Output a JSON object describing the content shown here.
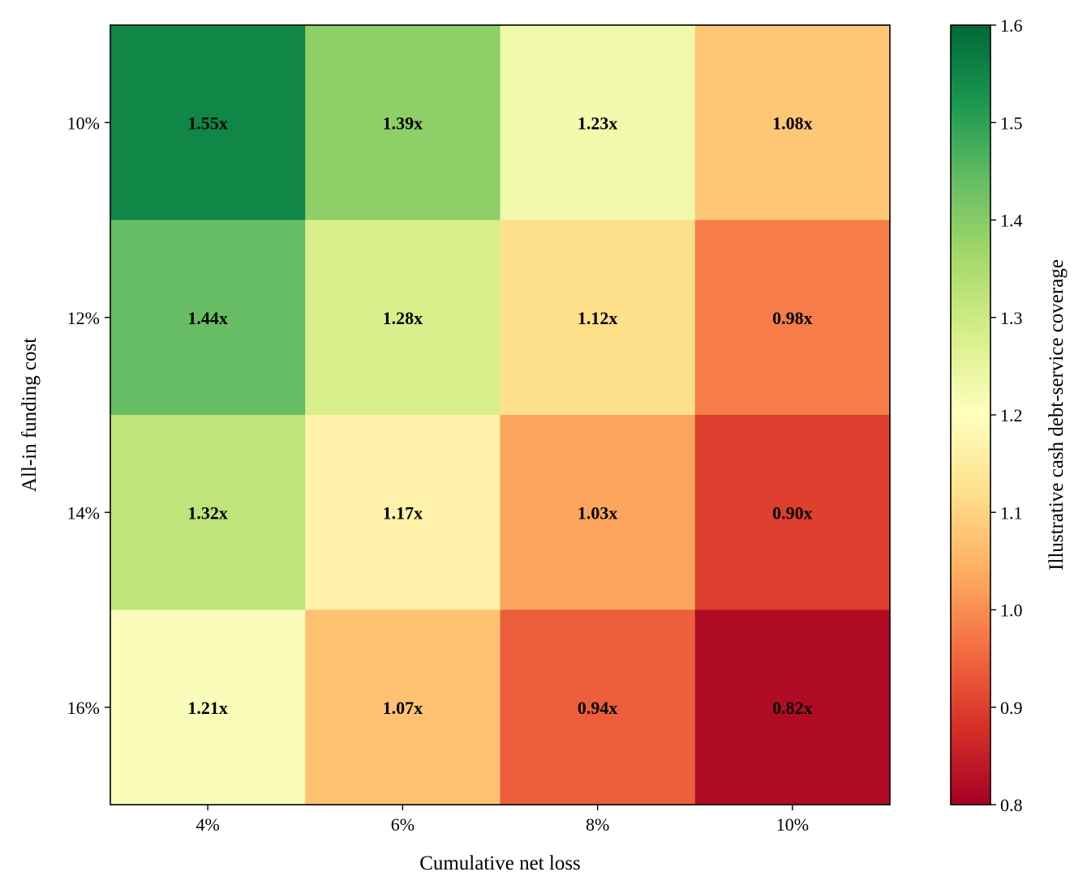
{
  "chart_data": {
    "type": "heatmap",
    "xlabel": "Cumulative net loss",
    "ylabel": "All-in funding cost",
    "x_categories": [
      "4%",
      "6%",
      "8%",
      "10%"
    ],
    "y_categories": [
      "10%",
      "12%",
      "14%",
      "16%"
    ],
    "values": [
      [
        1.55,
        1.39,
        1.23,
        1.08
      ],
      [
        1.44,
        1.28,
        1.12,
        0.98
      ],
      [
        1.32,
        1.17,
        1.03,
        0.9
      ],
      [
        1.21,
        1.07,
        0.94,
        0.82
      ]
    ],
    "cell_labels": [
      [
        "1.55x",
        "1.39x",
        "1.23x",
        "1.08x"
      ],
      [
        "1.44x",
        "1.28x",
        "1.12x",
        "0.98x"
      ],
      [
        "1.32x",
        "1.17x",
        "1.03x",
        "0.90x"
      ],
      [
        "1.21x",
        "1.07x",
        "0.94x",
        "0.82x"
      ]
    ],
    "colorbar": {
      "label": "Illustrative cash debt-service coverage",
      "range": [
        0.8,
        1.6
      ],
      "ticks": [
        "0.8",
        "0.9",
        "1.0",
        "1.1",
        "1.2",
        "1.3",
        "1.4",
        "1.5",
        "1.6"
      ],
      "colormap": "RdYlGn"
    }
  }
}
